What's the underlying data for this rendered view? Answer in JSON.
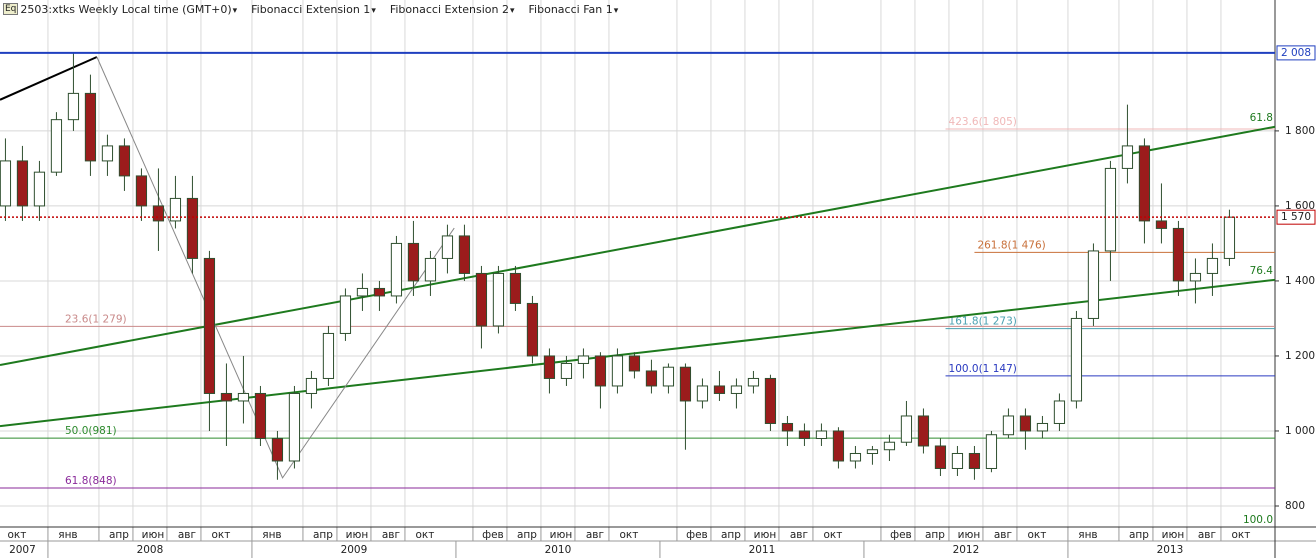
{
  "toolbar": {
    "icon": "Eq",
    "items": [
      "2503:xtks Weekly Local time (GMT+0)",
      "Fibonacci Extension 1",
      "Fibonacci Extension 2",
      "Fibonacci Fan 1"
    ]
  },
  "chart_data": {
    "type": "candlestick",
    "x": [
      0.5,
      1.5,
      2.5,
      3.5,
      4.5,
      5.5,
      6.5,
      7.5,
      8.5,
      9.5,
      10.5,
      11.5,
      12.5,
      13.5,
      14.5,
      15.5,
      16.5,
      17.5,
      18.5,
      19.5,
      20.5,
      21.5,
      22.5,
      23.5,
      24.5,
      25.5,
      26.5,
      27.5,
      28.5,
      29.5,
      30.5,
      31.5,
      32.5,
      33.5,
      34.5,
      35.5,
      36.5,
      37.5,
      38.5,
      39.5,
      40.5,
      41.5,
      42.5,
      43.5,
      44.5,
      45.5,
      46.5,
      47.5,
      48.5,
      49.5,
      50.5,
      51.5,
      52.5,
      53.5,
      54.5,
      55.5,
      56.5,
      57.5,
      58.5,
      59.5,
      60.5,
      61.5,
      62.5,
      63.5,
      64.5,
      65.5,
      66.5,
      67.5,
      68.5,
      69.5,
      70.5,
      71.5,
      72.5
    ],
    "open": [
      1600,
      1720,
      1600,
      1690,
      1830,
      1900,
      1720,
      1760,
      1680,
      1600,
      1560,
      1620,
      1460,
      1100,
      1080,
      1100,
      980,
      920,
      1100,
      1140,
      1260,
      1360,
      1380,
      1360,
      1500,
      1400,
      1460,
      1520,
      1420,
      1280,
      1420,
      1340,
      1200,
      1140,
      1180,
      1200,
      1120,
      1200,
      1160,
      1120,
      1170,
      1080,
      1120,
      1100,
      1120,
      1140,
      1020,
      1000,
      980,
      1000,
      920,
      940,
      950,
      970,
      1040,
      960,
      900,
      940,
      900,
      990,
      1040,
      1000,
      1020,
      1080,
      1300,
      1480,
      1700,
      1760,
      1560,
      1540,
      1400,
      1420,
      1460
    ],
    "high": [
      1780,
      1760,
      1720,
      1850,
      2008,
      1950,
      1790,
      1780,
      1700,
      1700,
      1680,
      1680,
      1480,
      1180,
      1200,
      1120,
      1000,
      1120,
      1160,
      1280,
      1380,
      1420,
      1400,
      1520,
      1560,
      1480,
      1550,
      1550,
      1440,
      1440,
      1440,
      1360,
      1220,
      1200,
      1220,
      1210,
      1220,
      1210,
      1190,
      1180,
      1180,
      1140,
      1160,
      1140,
      1160,
      1150,
      1040,
      1020,
      1020,
      1010,
      960,
      960,
      990,
      1080,
      1060,
      980,
      960,
      960,
      1000,
      1060,
      1060,
      1040,
      1100,
      1320,
      1500,
      1720,
      1870,
      1780,
      1660,
      1560,
      1460,
      1500,
      1590
    ],
    "low": [
      1560,
      1560,
      1560,
      1680,
      1800,
      1680,
      1680,
      1640,
      1560,
      1480,
      1540,
      1420,
      1000,
      960,
      1020,
      960,
      870,
      900,
      1060,
      1120,
      1240,
      1320,
      1320,
      1340,
      1360,
      1360,
      1420,
      1400,
      1220,
      1260,
      1320,
      1180,
      1100,
      1120,
      1140,
      1060,
      1100,
      1140,
      1100,
      1100,
      950,
      1060,
      1080,
      1060,
      1100,
      1000,
      960,
      960,
      960,
      900,
      900,
      910,
      920,
      960,
      940,
      880,
      880,
      870,
      890,
      980,
      950,
      980,
      1000,
      1060,
      1280,
      1400,
      1660,
      1500,
      1500,
      1360,
      1340,
      1360,
      1440
    ],
    "close": [
      1720,
      1600,
      1690,
      1830,
      1900,
      1720,
      1760,
      1680,
      1600,
      1560,
      1620,
      1460,
      1100,
      1080,
      1100,
      980,
      920,
      1100,
      1140,
      1260,
      1360,
      1380,
      1360,
      1500,
      1400,
      1460,
      1520,
      1420,
      1280,
      1420,
      1340,
      1200,
      1140,
      1180,
      1200,
      1120,
      1200,
      1160,
      1120,
      1170,
      1080,
      1120,
      1100,
      1120,
      1140,
      1020,
      1000,
      980,
      1000,
      920,
      940,
      950,
      970,
      1040,
      960,
      900,
      940,
      900,
      990,
      1040,
      1000,
      1020,
      1080,
      1300,
      1480,
      1700,
      1760,
      1560,
      1540,
      1400,
      1420,
      1460,
      1570
    ],
    "up_color": "#ffffff",
    "down_color": "#9b1c1c",
    "wick_color": "#2f4f2f",
    "xlim": [
      0.18,
      75.18
    ],
    "ylim": [
      744,
      2149
    ],
    "yticks": [
      {
        "value": 1800,
        "label": "1 800"
      },
      {
        "value": 1600,
        "label": "1 600"
      },
      {
        "value": 1400,
        "label": "1 400"
      },
      {
        "value": 1200,
        "label": "1 200"
      },
      {
        "value": 1000,
        "label": "1 000"
      },
      800
    ],
    "month_ticks": [
      {
        "value": 0,
        "label": "окт"
      },
      {
        "value": 3,
        "label": "янв"
      },
      {
        "value": 6,
        "label": "апр"
      },
      {
        "value": 8,
        "label": "июн"
      },
      {
        "value": 10,
        "label": "авг"
      },
      {
        "value": 12,
        "label": "окт"
      },
      {
        "value": 15,
        "label": "янв"
      },
      {
        "value": 18,
        "label": "апр"
      },
      {
        "value": 20,
        "label": "июн"
      },
      {
        "value": 22,
        "label": "авг"
      },
      {
        "value": 24,
        "label": "окт"
      },
      {
        "value": 28,
        "label": "фев"
      },
      {
        "value": 30,
        "label": "апр"
      },
      {
        "value": 32,
        "label": "июн"
      },
      {
        "value": 34,
        "label": "авг"
      },
      {
        "value": 36,
        "label": "окт"
      },
      {
        "value": 40,
        "label": "фев"
      },
      {
        "value": 42,
        "label": "апр"
      },
      {
        "value": 44,
        "label": "июн"
      },
      {
        "value": 46,
        "label": "авг"
      },
      {
        "value": 48,
        "label": "окт"
      },
      {
        "value": 52,
        "label": "фев"
      },
      {
        "value": 54,
        "label": "апр"
      },
      {
        "value": 56,
        "label": "июн"
      },
      {
        "value": 58,
        "label": "авг"
      },
      {
        "value": 60,
        "label": "окт"
      },
      {
        "value": 63,
        "label": "янв"
      },
      {
        "value": 66,
        "label": "апр"
      },
      {
        "value": 68,
        "label": "июн"
      },
      {
        "value": 70,
        "label": "авг"
      },
      {
        "value": 72,
        "label": "окт"
      }
    ],
    "year_ticks": [
      {
        "value": 1.5,
        "label": "2007"
      },
      {
        "value": 9,
        "label": "2008"
      },
      {
        "value": 21,
        "label": "2009"
      },
      {
        "value": 33,
        "label": "2010"
      },
      {
        "value": 45,
        "label": "2011"
      },
      {
        "value": 57,
        "label": "2012"
      },
      {
        "value": 69,
        "label": "2013"
      }
    ],
    "grid": true,
    "hlines": [
      {
        "value": 2008,
        "label": "2 008",
        "color": "#1f3fbf",
        "style": "solid"
      },
      {
        "value": 1570,
        "label": "1 570",
        "color": "#c00000",
        "style": "dotted"
      }
    ],
    "fib_levels": [
      {
        "label": "23.6(1 279)",
        "value": 1279,
        "color": "#c98a8a"
      },
      {
        "label": "50.0(981)",
        "value": 981,
        "color": "#2e8b2e"
      },
      {
        "label": "61.8(848)",
        "value": 848,
        "color": "#8a2a9a"
      },
      {
        "label": "423.6(1 805)",
        "value": 1805,
        "color": "#f0b8b8",
        "start": 55.8
      },
      {
        "label": "261.8(1 476)",
        "value": 1476,
        "color": "#c8703a",
        "start": 57.5
      },
      {
        "label": "161.8(1 273)",
        "value": 1273,
        "color": "#4aa0b0",
        "start": 55.8
      },
      {
        "label": "100.0(1 147)",
        "value": 1147,
        "color": "#2a3ac0",
        "start": 55.8
      }
    ],
    "fan_lines": [
      {
        "label": "61.8",
        "color": "#1e7a1e",
        "x": [
          0.18,
          75.18
        ],
        "y": [
          1176,
          1811
        ]
      },
      {
        "label": "76.4",
        "color": "#1e7a1e",
        "x": [
          0.18,
          75.18
        ],
        "y": [
          1013,
          1403
        ]
      }
    ],
    "fan_base_label": "100.0",
    "trend_lines": [
      {
        "color": "#000000",
        "x": [
          0.18,
          5.88
        ],
        "y": [
          1883,
          1997
        ]
      },
      {
        "color": "#888888",
        "x": [
          5.88,
          16.8,
          26.9
        ],
        "y": [
          1997,
          875,
          1541
        ]
      }
    ]
  }
}
